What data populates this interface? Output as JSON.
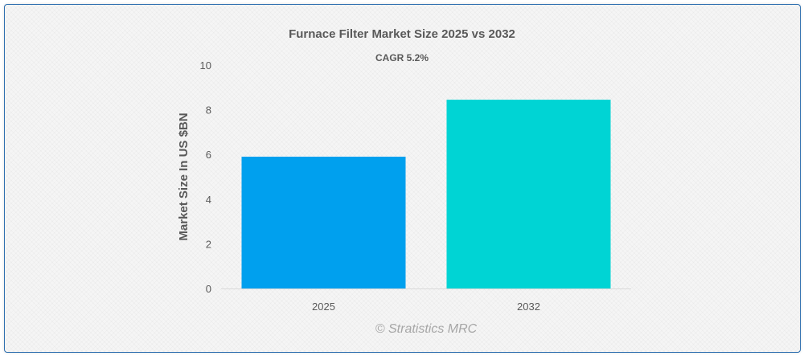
{
  "watermark": "© Stratistics MRC",
  "chart_data": {
    "type": "bar",
    "title": "Furnace Filter Market Size 2025 vs 2032",
    "subtitle": "CAGR 5.2%",
    "ylabel": "Market Size In US $BN",
    "xlabel": "",
    "categories": [
      "2025",
      "2032"
    ],
    "values": [
      5.9,
      8.45
    ],
    "colors": [
      "#00a0ee",
      "#00d4d4"
    ],
    "ylim": [
      0,
      10
    ],
    "yticks": [
      0,
      2,
      4,
      6,
      8,
      10
    ],
    "grid": false,
    "legend": "none"
  }
}
